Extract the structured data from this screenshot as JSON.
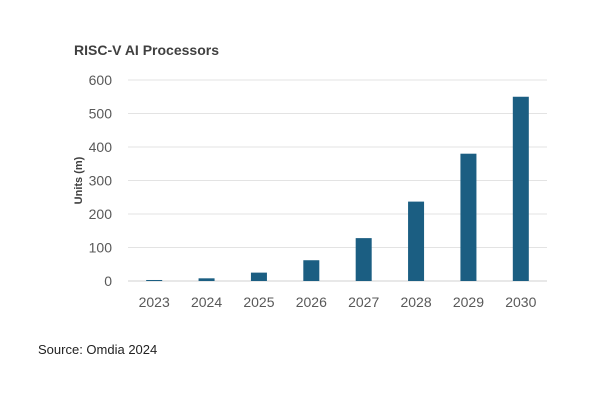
{
  "chart_data": {
    "type": "bar",
    "title": "RISC-V AI Processors",
    "ylabel": "Units (m)",
    "xlabel": "",
    "categories": [
      "2023",
      "2024",
      "2025",
      "2026",
      "2027",
      "2028",
      "2029",
      "2030"
    ],
    "values": [
      3,
      8,
      25,
      62,
      128,
      237,
      380,
      550
    ],
    "ylim": [
      0,
      600
    ],
    "yticks": [
      0,
      100,
      200,
      300,
      400,
      500,
      600
    ],
    "grid": true,
    "bar_color": "#1b5e82"
  },
  "source": "Source: Omdia 2024"
}
